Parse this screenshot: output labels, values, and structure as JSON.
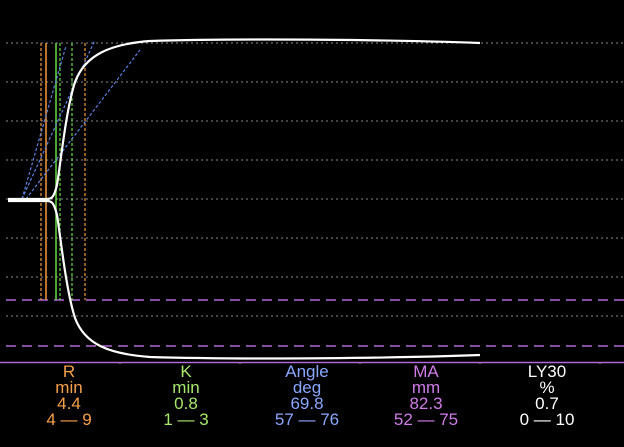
{
  "parameters": [
    {
      "name": "R",
      "unit": "min",
      "value": "4.4",
      "range": "4 — 9",
      "color": "#f6a14a"
    },
    {
      "name": "K",
      "unit": "min",
      "value": "0.8",
      "range": "1 — 3",
      "color": "#a6e86c"
    },
    {
      "name": "Angle",
      "unit": "deg",
      "value": "69.8",
      "range": "57 — 76",
      "color": "#8aa7ff"
    },
    {
      "name": "MA",
      "unit": "mm",
      "value": "82.3",
      "range": "52 — 75",
      "color": "#d07ce8"
    },
    {
      "name": "LY30",
      "unit": "%",
      "value": "0.7",
      "range": "0 — 10",
      "color": "#ffffff"
    }
  ],
  "colors": {
    "background": "#000000",
    "trace": "#ffffff",
    "grid": "#8a8a8a",
    "r_marker": "#f29a3a",
    "k_marker": "#66dd44",
    "angle_line": "#5b7fe0",
    "ma_reference": "#b067d8"
  }
}
